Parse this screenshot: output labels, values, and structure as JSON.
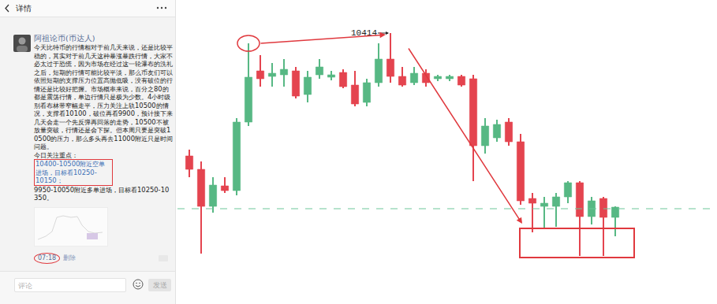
{
  "post": {
    "header_title": "详情",
    "author": "阿祖论币(币达人)",
    "body": "今天比特币的行情相对于前几天来说，还是比较平稳的，其实对于前几天这种暴涨暴跌行情，大家不必太过于恐慌，因为市场在经过这一轮瀑布的洗礼之后，短期的行情可能比较平淡，那么币友们可以依照短期的支撑压力位置高抛低吸，没有破位的行情还是比较好把握。市场概率来说，百分之80的都是震荡行情，单边行情只是极为少数。4小时级别看布林带窄幅走平，压力关注上轨10500的情况，支撑看10100，破位再看9900，预计接下来几天会走一个先反弹再回落的走势，10500不被放量突破，行情还是会下探。但本周只要是突破10500的压力，那么多头再去11000附近只是时间问题。",
    "focus_title": "今日关注重点：",
    "focus_highlighted": "10400-10500附近空单进场，目标看10250-10150；",
    "focus_other": "9950-10050附近多单进场，目标看10250-10350。",
    "time": "07:18",
    "delete": "删除",
    "comment_placeholder": "评论",
    "send": "发送"
  },
  "chart_data": {
    "type": "candlestick",
    "x": [
      1,
      2,
      3,
      4,
      5,
      6,
      7,
      8,
      9,
      10,
      11,
      12,
      13,
      14,
      15,
      16,
      17,
      18,
      19,
      20,
      21,
      22,
      23,
      24,
      25,
      26,
      27,
      28,
      29,
      30,
      31,
      32,
      33,
      34,
      35,
      36,
      37
    ],
    "open": [
      10102,
      10068,
      9974,
      10026,
      10014,
      10188,
      10318,
      10304,
      10308,
      10318,
      10258,
      10308,
      10302,
      10314,
      10282,
      10238,
      10288,
      10348,
      10304,
      10288,
      10312,
      10298,
      10298,
      10304,
      10298,
      10128,
      10148,
      10188,
      10138,
      9994,
      9974,
      9974,
      9998,
      10034,
      9948,
      9994,
      9946
    ],
    "high": [
      10118,
      10088,
      10048,
      10048,
      10198,
      10388,
      10358,
      10338,
      10348,
      10328,
      10318,
      10348,
      10318,
      10322,
      10318,
      10298,
      10388,
      10414,
      10328,
      10328,
      10322,
      10308,
      10308,
      10308,
      10308,
      10198,
      10194,
      10198,
      10158,
      10008,
      9998,
      10008,
      10038,
      10038,
      9998,
      9998,
      9974
    ],
    "low": [
      10048,
      9854,
      9958,
      10008,
      10002,
      10178,
      10278,
      10278,
      10278,
      10248,
      10238,
      10298,
      10294,
      10274,
      10228,
      10228,
      10278,
      10288,
      10278,
      10282,
      10278,
      10292,
      10292,
      10278,
      10038,
      10108,
      10138,
      10128,
      9978,
      9908,
      9918,
      9922,
      9982,
      9848,
      9928,
      9848,
      9898
    ],
    "close": [
      10068,
      9974,
      10028,
      10014,
      10188,
      10302,
      10298,
      10312,
      10322,
      10254,
      10302,
      10328,
      10308,
      10278,
      10234,
      10288,
      10348,
      10304,
      10282,
      10312,
      10288,
      10304,
      10304,
      10282,
      10128,
      10178,
      10182,
      10138,
      9988,
      9982,
      9982,
      9998,
      10034,
      9948,
      9988,
      9946,
      9972
    ],
    "colors": [
      "#e4444f",
      "#e4444f",
      "#57b884",
      "#e4444f",
      "#57b884",
      "#57b884",
      "#e4444f",
      "#57b884",
      "#57b884",
      "#e4444f",
      "#57b884",
      "#57b884",
      "#57b884",
      "#e4444f",
      "#e4444f",
      "#57b884",
      "#57b884",
      "#e4444f",
      "#e4444f",
      "#57b884",
      "#e4444f",
      "#57b884",
      "#57b884",
      "#e4444f",
      "#e4444f",
      "#57b884",
      "#57b884",
      "#e4444f",
      "#e4444f",
      "#e4444f",
      "#57b884",
      "#57b884",
      "#57b884",
      "#e4444f",
      "#57b884",
      "#e4444f",
      "#57b884"
    ],
    "xlim": [
      0,
      45.6
    ],
    "ylim": [
      9726,
      10498
    ],
    "tick_labels": false,
    "grid": false,
    "hline": 9968,
    "annotations": [
      {
        "text": "10414",
        "x": 18,
        "y": 10414
      }
    ]
  }
}
